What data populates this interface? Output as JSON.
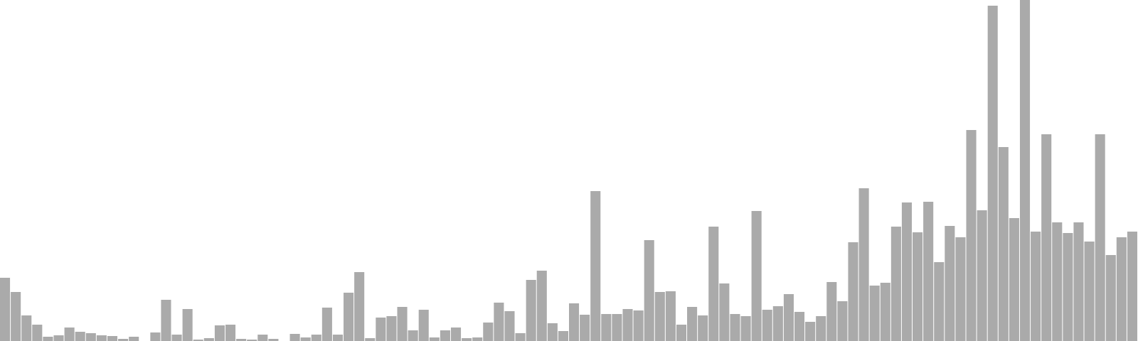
{
  "chart_data": {
    "type": "bar",
    "title": "",
    "xlabel": "",
    "ylabel": "",
    "grid": false,
    "legend": "none",
    "ylim": [
      0,
      480
    ],
    "bar_color": "#aaaaaa",
    "values": [
      89,
      69,
      36,
      23,
      6,
      8,
      19,
      13,
      11,
      8,
      7,
      3,
      6,
      0,
      12,
      58,
      9,
      45,
      2,
      4,
      22,
      23,
      3,
      2,
      9,
      3,
      0,
      10,
      5,
      9,
      47,
      9,
      68,
      97,
      4,
      33,
      35,
      48,
      15,
      44,
      5,
      15,
      19,
      4,
      5,
      26,
      54,
      42,
      11,
      86,
      99,
      25,
      14,
      53,
      37,
      211,
      38,
      38,
      45,
      43,
      142,
      69,
      70,
      23,
      48,
      36,
      161,
      81,
      38,
      35,
      183,
      44,
      49,
      66,
      41,
      27,
      35,
      83,
      56,
      139,
      215,
      78,
      82,
      161,
      195,
      153,
      196,
      111,
      162,
      146,
      297,
      184,
      472,
      273,
      173,
      480,
      154,
      291,
      167,
      152,
      167,
      140,
      291,
      121,
      146,
      154
    ]
  }
}
